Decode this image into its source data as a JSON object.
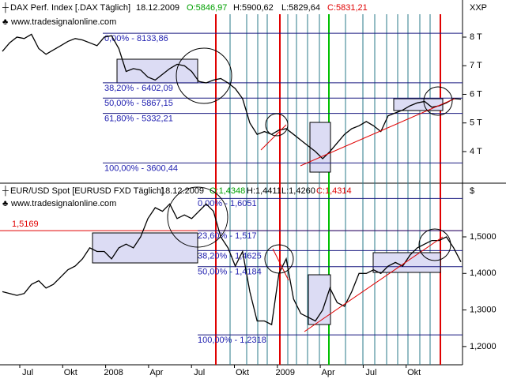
{
  "chart_data": [
    {
      "type": "line",
      "header": {
        "name": "DAX Perf. Index [.DAX Täglich]",
        "date": "18.12.2009",
        "open": "O:5846,97",
        "high": "H:5900,62",
        "low": "L:5829,64",
        "close": "C:5831,21"
      },
      "source": "www.tradesignalonline.com",
      "unit": "XXP",
      "ylim": [
        2950,
        8800
      ],
      "yticks": [
        {
          "value": 8000,
          "label": "8 T"
        },
        {
          "value": 7000,
          "label": "7 T"
        },
        {
          "value": 6000,
          "label": "6 T"
        },
        {
          "value": 5000,
          "label": "5 T"
        },
        {
          "value": 4000,
          "label": "4 T"
        }
      ],
      "levels": [
        {
          "value": 8133.86,
          "label": "0,00% - 8133,86"
        },
        {
          "value": 6402.09,
          "label": "38,20% - 6402,09"
        },
        {
          "value": 5867.15,
          "label": "50,00% - 5867,15"
        },
        {
          "value": 5332.21,
          "label": "61,80% - 5332,21"
        },
        {
          "value": 3600.44,
          "label": "100,00% - 3600,44"
        }
      ],
      "color": "#000000",
      "values": [
        7500,
        7800,
        8000,
        7950,
        8100,
        7600,
        7400,
        7550,
        7700,
        7850,
        7950,
        7900,
        7800,
        7700,
        8000,
        8050,
        7600,
        6800,
        6900,
        6850,
        6600,
        6500,
        6700,
        6900,
        7050,
        7000,
        6800,
        6450,
        6400,
        6500,
        6550,
        6400,
        6200,
        5850,
        5000,
        4600,
        4700,
        4600,
        4750,
        4800,
        4600,
        4400,
        4200,
        4000,
        3750,
        4000,
        4300,
        4600,
        4800,
        4900,
        5050,
        4900,
        4700,
        5250,
        5350,
        5450,
        5600,
        5700,
        5750,
        5550,
        5600,
        5700,
        5850,
        5831.21
      ]
    },
    {
      "type": "line",
      "header": {
        "name": "EUR/USD Spot [EURUSD FXD  Täglich]",
        "date": "18.12.2009",
        "open": "O:1,4348",
        "high": "H:1,4411",
        "low": "L:1,4260",
        "close": "C:1,4314"
      },
      "source": "www.tradesignalonline.com",
      "unit": "$",
      "ylim": [
        1.15,
        1.608
      ],
      "yticks": [
        {
          "value": 1.5,
          "label": "1,5000"
        },
        {
          "value": 1.4,
          "label": "1,4000"
        },
        {
          "value": 1.3,
          "label": "1,3000"
        },
        {
          "value": 1.2,
          "label": "1,2000"
        }
      ],
      "reference": {
        "value": 1.5169,
        "label": "1,5169"
      },
      "levels": [
        {
          "value": 1.6051,
          "label": "0,00% - 1,6051"
        },
        {
          "value": 1.517,
          "label": "23,60% - 1,517"
        },
        {
          "value": 1.4625,
          "label": "38,20% - 1,4625"
        },
        {
          "value": 1.4184,
          "label": "50,00% - 1,4184"
        },
        {
          "value": 1.2318,
          "label": "100,00% - 1,2318"
        }
      ],
      "color": "#000000",
      "values": [
        1.35,
        1.345,
        1.34,
        1.345,
        1.37,
        1.38,
        1.36,
        1.37,
        1.39,
        1.41,
        1.42,
        1.44,
        1.47,
        1.46,
        1.46,
        1.44,
        1.47,
        1.48,
        1.47,
        1.5,
        1.55,
        1.58,
        1.57,
        1.59,
        1.55,
        1.56,
        1.55,
        1.57,
        1.59,
        1.57,
        1.5,
        1.47,
        1.42,
        1.46,
        1.35,
        1.27,
        1.27,
        1.26,
        1.4,
        1.44,
        1.33,
        1.29,
        1.28,
        1.27,
        1.3,
        1.36,
        1.32,
        1.31,
        1.35,
        1.4,
        1.4,
        1.41,
        1.4,
        1.42,
        1.43,
        1.42,
        1.45,
        1.47,
        1.48,
        1.49,
        1.49,
        1.5,
        1.47,
        1.4314
      ],
      "x_labels": [
        "Jul",
        "Okt",
        "2008",
        "Apr",
        "Jul",
        "Okt",
        "2009",
        "Apr",
        "Jul",
        "Okt"
      ]
    }
  ]
}
